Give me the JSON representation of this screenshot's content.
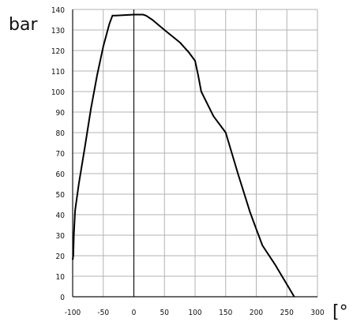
{
  "chart_data": {
    "type": "line",
    "xlabel": "",
    "ylabel": "",
    "y_unit_label": "bar",
    "x_unit_label": "[°",
    "xlim": [
      -100,
      300
    ],
    "ylim": [
      0,
      140
    ],
    "x_ticks": [
      -100,
      -50,
      0,
      50,
      100,
      150,
      200,
      250,
      300
    ],
    "x_tick_labels": [
      "-100",
      "-50",
      "0",
      "50",
      "100",
      "150",
      "200",
      "250",
      "300"
    ],
    "y_ticks": [
      0,
      10,
      20,
      30,
      40,
      50,
      60,
      70,
      80,
      90,
      100,
      110,
      120,
      130,
      140
    ],
    "y_tick_labels": [
      "0",
      "10",
      "20",
      "30",
      "40",
      "50",
      "60",
      "70",
      "80",
      "90",
      "100",
      "110",
      "120",
      "130",
      "140"
    ],
    "grid": true,
    "series": [
      {
        "color": "#000000",
        "x": [
          -100,
          -99,
          -98,
          -96,
          -90,
          -80,
          -70,
          -60,
          -50,
          -40,
          -35,
          -33,
          -30,
          0,
          15,
          20,
          30,
          50,
          75,
          90,
          100,
          105,
          110,
          130,
          150,
          170,
          190,
          200,
          210,
          230,
          250,
          262
        ],
        "y": [
          18,
          20,
          30,
          42,
          55,
          73,
          92,
          108,
          122,
          133,
          137,
          137,
          137,
          137.5,
          137.5,
          137,
          135,
          130,
          124,
          119,
          115,
          108,
          100,
          88,
          80,
          60,
          41,
          33,
          25,
          16,
          6,
          0
        ]
      }
    ]
  }
}
